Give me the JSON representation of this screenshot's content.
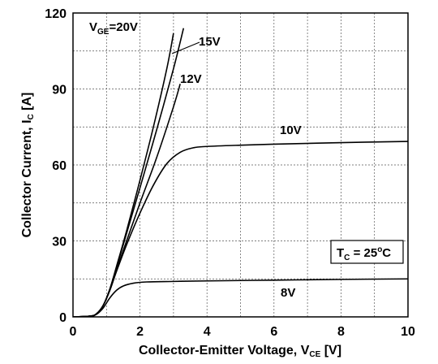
{
  "chart_data": {
    "type": "line",
    "xlabel_main": "Collector-Emitter Voltage, V",
    "xlabel_sub": "CE",
    "xlabel_unit": " [V]",
    "ylabel_main": "Collector Current, I",
    "ylabel_sub": "C",
    "ylabel_unit": " [A]",
    "xlim": [
      0,
      10
    ],
    "ylim": [
      0,
      120
    ],
    "xticks": [
      "0",
      "2",
      "4",
      "6",
      "8",
      "10"
    ],
    "yticks": [
      "0",
      "30",
      "60",
      "90",
      "120"
    ],
    "grid": true,
    "series": [
      {
        "name": "V_GE=20V",
        "x": [
          0,
          0.5,
          0.7,
          0.9,
          1.1,
          1.3,
          1.6,
          2.0,
          2.4,
          2.8,
          3.0
        ],
        "y": [
          0,
          0.3,
          1.2,
          4.5,
          11,
          20,
          34,
          54,
          75,
          98,
          112
        ]
      },
      {
        "name": "15V",
        "x": [
          0,
          0.5,
          0.7,
          0.9,
          1.1,
          1.3,
          1.6,
          2.0,
          2.5,
          3.0,
          3.3
        ],
        "y": [
          0,
          0.3,
          1.2,
          4.5,
          11,
          19.5,
          33,
          51,
          74,
          98,
          114
        ]
      },
      {
        "name": "12V",
        "x": [
          0,
          0.5,
          0.7,
          0.9,
          1.1,
          1.3,
          1.6,
          2.0,
          2.5,
          3.0,
          3.2
        ],
        "y": [
          0,
          0.3,
          1.2,
          4.5,
          10.5,
          18.5,
          30,
          45,
          63,
          83,
          92
        ]
      },
      {
        "name": "10V",
        "x": [
          0,
          0.5,
          0.7,
          0.9,
          1.1,
          1.3,
          1.6,
          2.0,
          2.4,
          2.8,
          3.2,
          3.6,
          4.0,
          5.0,
          6.0,
          8.0,
          10.0
        ],
        "y": [
          0,
          0.3,
          1.2,
          4.5,
          10.5,
          18,
          28.5,
          41,
          52,
          60.5,
          65,
          66.8,
          67.3,
          67.8,
          68.2,
          68.8,
          69.3
        ]
      },
      {
        "name": "8V",
        "x": [
          0,
          0.5,
          0.7,
          0.9,
          1.1,
          1.3,
          1.5,
          1.8,
          2.2,
          3.0,
          4.0,
          6.0,
          8.0,
          10.0
        ],
        "y": [
          0,
          0.2,
          1.0,
          3.5,
          7.5,
          10.5,
          12.2,
          13.3,
          13.8,
          14.0,
          14.2,
          14.5,
          14.8,
          15.0
        ]
      }
    ],
    "labels": {
      "vge_main": "V",
      "vge_sub": "GE",
      "vge_rest": "=20V",
      "v15": "15V",
      "v12": "12V",
      "v10": "10V",
      "v8": "8V",
      "tc_main": "T",
      "tc_sub": "C",
      "tc_eq": " = 25",
      "tc_sup": "o",
      "tc_unit": "C"
    }
  }
}
